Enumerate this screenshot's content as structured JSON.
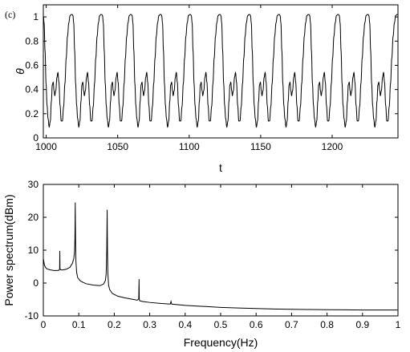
{
  "panel_label": "(c)",
  "chart_data": [
    {
      "type": "line",
      "title": "",
      "xlabel": "t",
      "ylabel": "θ",
      "xlim": [
        998,
        1246
      ],
      "ylim": [
        0,
        1.1
      ],
      "xticks": [
        "1000",
        "1050",
        "1100",
        "1150",
        "1200"
      ],
      "yticks": [
        "0",
        "0.2",
        "0.4",
        "0.6",
        "0.8",
        "1"
      ],
      "series": [
        {
          "color": "#000000",
          "pattern": {
            "period": 20.7,
            "start_t": 998,
            "cycle": [
              [
                0.0,
                1.01
              ],
              [
                0.55,
                0.95
              ],
              [
                1.2,
                0.72
              ],
              [
                1.9,
                0.45
              ],
              [
                2.6,
                0.27
              ],
              [
                3.3,
                0.16
              ],
              [
                4.1,
                0.09
              ],
              [
                4.9,
                0.14
              ],
              [
                5.6,
                0.3
              ],
              [
                6.3,
                0.44
              ],
              [
                6.9,
                0.46
              ],
              [
                7.5,
                0.39
              ],
              [
                8.0,
                0.35
              ],
              [
                8.7,
                0.39
              ],
              [
                9.5,
                0.5
              ],
              [
                10.2,
                0.54
              ],
              [
                10.9,
                0.46
              ],
              [
                11.7,
                0.27
              ],
              [
                12.5,
                0.14
              ],
              [
                13.3,
                0.14
              ],
              [
                14.2,
                0.26
              ],
              [
                15.1,
                0.45
              ],
              [
                16.0,
                0.66
              ],
              [
                16.9,
                0.84
              ],
              [
                17.8,
                0.95
              ],
              [
                18.7,
                1.01
              ],
              [
                19.5,
                1.02
              ],
              [
                20.2,
                1.02
              ],
              [
                20.7,
                1.01
              ]
            ]
          }
        }
      ],
      "grid": false,
      "legend": "none"
    },
    {
      "type": "line",
      "title": "",
      "xlabel": "Frequency(Hz)",
      "ylabel": "Power spectrum(dBm)",
      "xlim": [
        0,
        1
      ],
      "ylim": [
        -10,
        30
      ],
      "xticks": [
        "0",
        "0.1",
        "0.2",
        "0.3",
        "0.4",
        "0.5",
        "0.6",
        "0.7",
        "0.8",
        "0.9",
        "1"
      ],
      "yticks": [
        "-10",
        "0",
        "10",
        "20",
        "30"
      ],
      "series": [
        {
          "color": "#000000",
          "x": [
            0.0,
            0.003,
            0.006,
            0.01,
            0.02,
            0.03,
            0.04,
            0.044,
            0.046,
            0.0465,
            0.047,
            0.0475,
            0.049,
            0.055,
            0.065,
            0.075,
            0.082,
            0.086,
            0.088,
            0.089,
            0.0895,
            0.09,
            0.0905,
            0.091,
            0.0915,
            0.092,
            0.094,
            0.097,
            0.105,
            0.12,
            0.14,
            0.16,
            0.17,
            0.175,
            0.177,
            0.178,
            0.179,
            0.1795,
            0.18,
            0.1805,
            0.181,
            0.182,
            0.184,
            0.187,
            0.195,
            0.21,
            0.23,
            0.25,
            0.265,
            0.269,
            0.27,
            0.2705,
            0.271,
            0.272,
            0.28,
            0.3,
            0.33,
            0.358,
            0.36,
            0.362,
            0.4,
            0.45,
            0.5,
            0.55,
            0.6,
            0.65,
            0.7,
            0.75,
            0.8,
            0.85,
            0.9,
            0.95,
            1.0
          ],
          "y": [
            7.5,
            5.5,
            4.8,
            4.3,
            4.0,
            3.8,
            3.8,
            3.9,
            4.2,
            9.8,
            4.4,
            4.2,
            4.0,
            4.0,
            4.2,
            4.8,
            6.0,
            7.5,
            9.5,
            13.0,
            18.0,
            24.5,
            18.0,
            12.5,
            9.0,
            6.5,
            3.2,
            1.6,
            0.6,
            -0.2,
            -0.6,
            -0.8,
            -0.3,
            0.8,
            2.5,
            5.5,
            11.0,
            17.0,
            22.3,
            15.0,
            9.0,
            3.0,
            -0.6,
            -2.0,
            -3.2,
            -4.0,
            -4.5,
            -4.9,
            -5.2,
            -4.8,
            1.2,
            -4.6,
            -5.2,
            -5.4,
            -5.6,
            -5.9,
            -6.2,
            -6.4,
            -5.6,
            -6.4,
            -6.8,
            -7.1,
            -7.4,
            -7.6,
            -7.75,
            -7.9,
            -8.0,
            -8.05,
            -8.1,
            -8.15,
            -8.2,
            -8.2,
            -8.2
          ]
        }
      ],
      "grid": false,
      "legend": "none"
    }
  ]
}
